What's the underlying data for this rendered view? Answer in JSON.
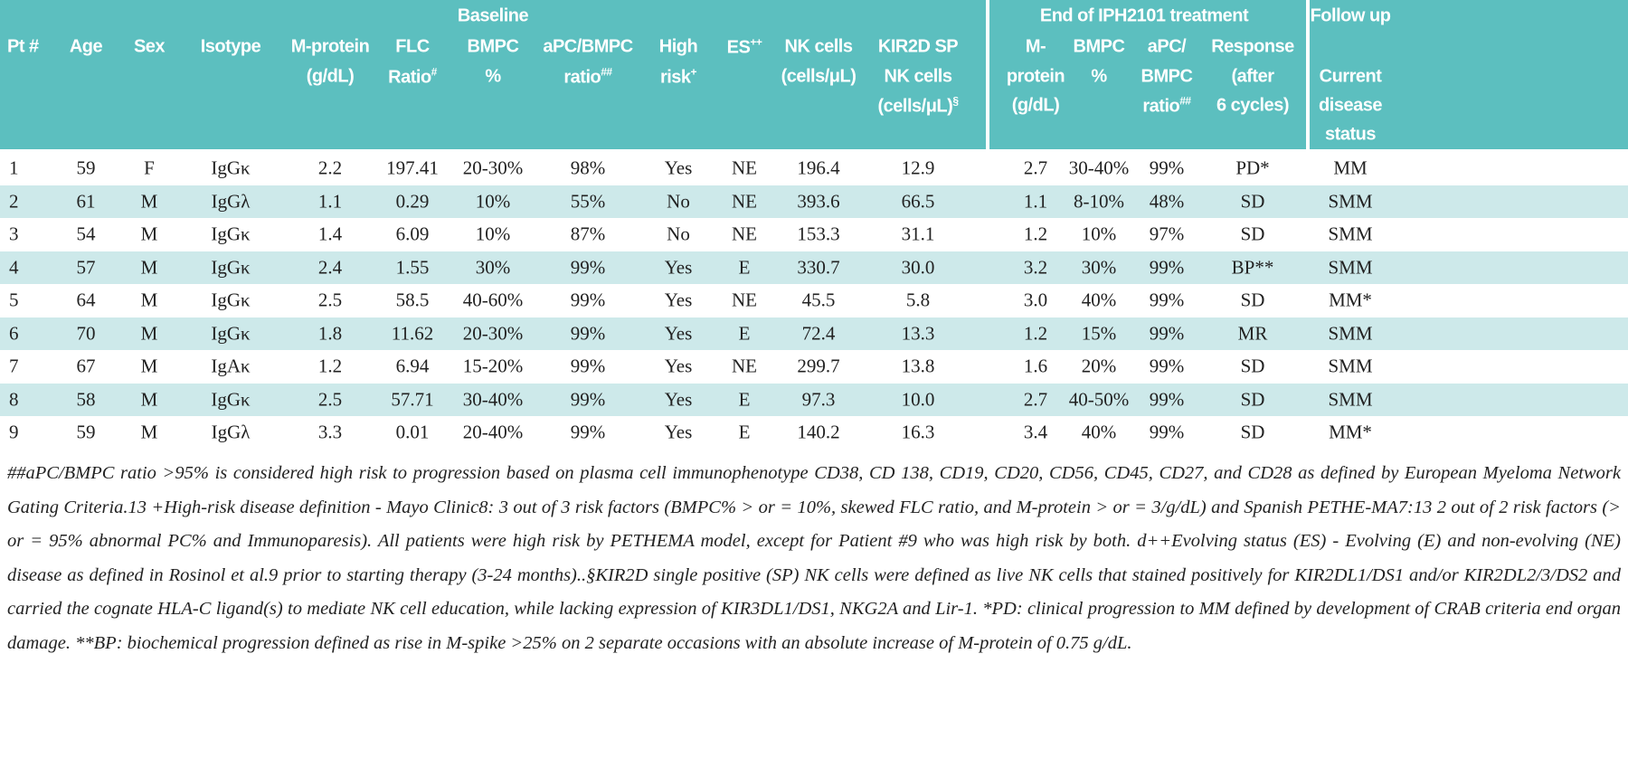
{
  "header": {
    "groups": [
      {
        "text": "Baseline"
      },
      {
        "text": "End of IPH2101 treatment"
      },
      {
        "text": "Follow up"
      }
    ],
    "columns": [
      {
        "lines": [
          "Pt #"
        ]
      },
      {
        "lines": [
          "Age"
        ]
      },
      {
        "lines": [
          "Sex"
        ]
      },
      {
        "lines": [
          "Isotype"
        ]
      },
      {
        "lines": [
          "M-protein",
          "(g/dL)"
        ]
      },
      {
        "lines": [
          "FLC",
          "Ratio"
        ],
        "sup": "#"
      },
      {
        "lines": [
          "BMPC",
          "%"
        ]
      },
      {
        "lines": [
          "aPC/BMPC",
          "ratio"
        ],
        "sup": "##"
      },
      {
        "lines": [
          "High",
          "risk"
        ],
        "sup": "+"
      },
      {
        "lines": [
          "ES"
        ],
        "sup": "++"
      },
      {
        "lines": [
          "NK cells",
          "(cells/μL)"
        ]
      },
      {
        "lines": [
          "KIR2D SP",
          "NK cells",
          "(cells/μL)"
        ],
        "sup": "§"
      },
      {
        "lines": [
          "M-",
          "protein",
          "(g/dL)"
        ]
      },
      {
        "lines": [
          "BMPC",
          "%"
        ]
      },
      {
        "lines": [
          "aPC/",
          "BMPC",
          "ratio"
        ],
        "sup": "##"
      },
      {
        "lines": [
          "Response",
          "(after",
          "6 cycles)"
        ]
      },
      {
        "lines": [
          "Current",
          "disease",
          "status"
        ]
      }
    ]
  },
  "table": {
    "rows": [
      [
        "1",
        "59",
        "F",
        "IgGκ",
        "2.2",
        "197.41",
        "20-30%",
        "98%",
        "Yes",
        "NE",
        "196.4",
        "12.9",
        "2.7",
        "30-40%",
        "99%",
        "PD*",
        "MM"
      ],
      [
        "2",
        "61",
        "M",
        "IgGλ",
        "1.1",
        "0.29",
        "10%",
        "55%",
        "No",
        "NE",
        "393.6",
        "66.5",
        "1.1",
        "8-10%",
        "48%",
        "SD",
        "SMM"
      ],
      [
        "3",
        "54",
        "M",
        "IgGκ",
        "1.4",
        "6.09",
        "10%",
        "87%",
        "No",
        "NE",
        "153.3",
        "31.1",
        "1.2",
        "10%",
        "97%",
        "SD",
        "SMM"
      ],
      [
        "4",
        "57",
        "M",
        "IgGκ",
        "2.4",
        "1.55",
        "30%",
        "99%",
        "Yes",
        "E",
        "330.7",
        "30.0",
        "3.2",
        "30%",
        "99%",
        "BP**",
        "SMM"
      ],
      [
        "5",
        "64",
        "M",
        "IgGκ",
        "2.5",
        "58.5",
        "40-60%",
        "99%",
        "Yes",
        "NE",
        "45.5",
        "5.8",
        "3.0",
        "40%",
        "99%",
        "SD",
        "MM*"
      ],
      [
        "6",
        "70",
        "M",
        "IgGκ",
        "1.8",
        "11.62",
        "20-30%",
        "99%",
        "Yes",
        "E",
        "72.4",
        "13.3",
        "1.2",
        "15%",
        "99%",
        "MR",
        "SMM"
      ],
      [
        "7",
        "67",
        "M",
        "IgAκ",
        "1.2",
        "6.94",
        "15-20%",
        "99%",
        "Yes",
        "NE",
        "299.7",
        "13.8",
        "1.6",
        "20%",
        "99%",
        "SD",
        "SMM"
      ],
      [
        "8",
        "58",
        "M",
        "IgGκ",
        "2.5",
        "57.71",
        "30-40%",
        "99%",
        "Yes",
        "E",
        "97.3",
        "10.0",
        "2.7",
        "40-50%",
        "99%",
        "SD",
        "SMM"
      ],
      [
        "9",
        "59",
        "M",
        "IgGλ",
        "3.3",
        "0.01",
        "20-40%",
        "99%",
        "Yes",
        "E",
        "140.2",
        "16.3",
        "3.4",
        "40%",
        "99%",
        "SD",
        "MM*"
      ]
    ]
  },
  "footnote": "##aPC/BMPC ratio >95% is considered high risk to progression based on plasma cell immunophenotype CD38, CD 138, CD19, CD20, CD56, CD45, CD27, and CD28 as defined by European Myeloma Network Gating Criteria.13 +High-risk disease definition - Mayo Clinic8: 3 out of 3 risk factors (BMPC% > or = 10%, skewed FLC ratio, and M-protein > or = 3/g/dL) and Spanish PETHE-MA7:13 2 out of 2 risk factors (> or = 95% abnormal PC% and Immunoparesis). All patients were high risk by PETHEMA model, except for Patient #9 who was high risk by both. d++Evolving status (ES) - Evolving (E) and non-evolving (NE) disease as defined in Rosinol et al.9 prior to starting therapy (3-24 months)..§KIR2D single positive (SP) NK cells were defined as live NK cells that stained positively for KIR2DL1/DS1 and/or KIR2DL2/3/DS2 and carried the cognate HLA-C ligand(s) to mediate NK cell education, while lacking expression of KIR3DL1/DS1, NKG2A and Lir-1. *PD: clinical progression to MM defined by development of CRAB criteria end organ damage. **BP: biochemical progression defined as rise in M-spike >25% on 2 separate occasions with an absolute increase of M-protein of 0.75 g/dL."
}
